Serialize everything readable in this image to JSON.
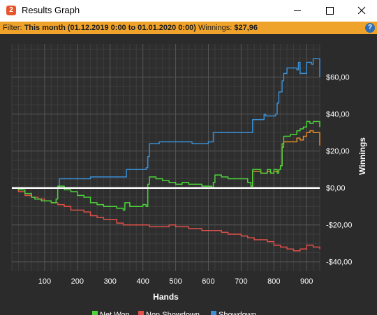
{
  "window": {
    "title": "Results Graph",
    "icon_label": "2",
    "controls": [
      "minimize",
      "maximize",
      "close"
    ]
  },
  "filter": {
    "label": "Filter:",
    "value": "This month (01.12.2019 0:00 to 01.01.2020 0:00)",
    "winnings_label": "Winnings:",
    "winnings_value": "$27,96",
    "help_label": "?"
  },
  "colors": {
    "background": "#2b2b2b",
    "grid": "#555555",
    "net_won": "#4cd43a",
    "non_showdown": "#e0504a",
    "showdown": "#3a8fd4",
    "extra_series": "#e08a2a",
    "zero_line": "#ffffff"
  },
  "chart_data": {
    "type": "line",
    "xlabel": "Hands",
    "ylabel": "Winnings",
    "xlim": [
      0,
      940
    ],
    "ylim": [
      -45,
      78
    ],
    "x_ticks": [
      100,
      200,
      300,
      400,
      500,
      600,
      700,
      800,
      900
    ],
    "y_ticks": [
      {
        "value": 60,
        "label": "$60,00"
      },
      {
        "value": 40,
        "label": "$40,00"
      },
      {
        "value": 20,
        "label": "$20,00"
      },
      {
        "value": 0,
        "label": "$0,00"
      },
      {
        "value": -20,
        "label": "-$20,00"
      },
      {
        "value": -40,
        "label": "-$40,00"
      }
    ],
    "grid": true,
    "legend_position": "bottom",
    "series": [
      {
        "name": "Showdown",
        "color_key": "showdown",
        "points": [
          [
            0,
            0
          ],
          [
            60,
            0
          ],
          [
            80,
            0
          ],
          [
            140,
            0
          ],
          [
            145,
            5
          ],
          [
            230,
            5
          ],
          [
            240,
            6
          ],
          [
            345,
            6
          ],
          [
            350,
            10
          ],
          [
            400,
            10
          ],
          [
            410,
            11
          ],
          [
            415,
            17
          ],
          [
            420,
            24
          ],
          [
            450,
            25
          ],
          [
            540,
            25
          ],
          [
            550,
            24
          ],
          [
            600,
            25
          ],
          [
            615,
            30
          ],
          [
            730,
            30
          ],
          [
            735,
            37
          ],
          [
            770,
            40
          ],
          [
            775,
            39
          ],
          [
            805,
            40
          ],
          [
            810,
            46
          ],
          [
            815,
            52
          ],
          [
            825,
            58
          ],
          [
            830,
            62
          ],
          [
            840,
            65
          ],
          [
            860,
            65
          ],
          [
            870,
            64
          ],
          [
            875,
            68
          ],
          [
            880,
            62
          ],
          [
            895,
            62
          ],
          [
            900,
            68
          ],
          [
            915,
            67
          ],
          [
            920,
            70
          ],
          [
            935,
            70
          ],
          [
            940,
            60
          ]
        ]
      },
      {
        "name": "Net Won",
        "color_key": "net_won",
        "points": [
          [
            0,
            0
          ],
          [
            20,
            -1
          ],
          [
            40,
            -3
          ],
          [
            60,
            -5
          ],
          [
            70,
            -6
          ],
          [
            90,
            -7
          ],
          [
            120,
            -8
          ],
          [
            135,
            -6
          ],
          [
            140,
            1
          ],
          [
            160,
            -1
          ],
          [
            180,
            -2
          ],
          [
            200,
            -4
          ],
          [
            220,
            -5
          ],
          [
            240,
            -8
          ],
          [
            260,
            -9
          ],
          [
            280,
            -10
          ],
          [
            300,
            -10
          ],
          [
            320,
            -11
          ],
          [
            340,
            -12
          ],
          [
            345,
            -8
          ],
          [
            360,
            -10
          ],
          [
            380,
            -10
          ],
          [
            400,
            -9
          ],
          [
            410,
            -10
          ],
          [
            415,
            2
          ],
          [
            420,
            6
          ],
          [
            440,
            5
          ],
          [
            460,
            4
          ],
          [
            480,
            3
          ],
          [
            500,
            2
          ],
          [
            520,
            3
          ],
          [
            540,
            2
          ],
          [
            560,
            2
          ],
          [
            580,
            1
          ],
          [
            600,
            1
          ],
          [
            610,
            0
          ],
          [
            615,
            3
          ],
          [
            620,
            7
          ],
          [
            640,
            6
          ],
          [
            660,
            5
          ],
          [
            680,
            5
          ],
          [
            700,
            5
          ],
          [
            720,
            3
          ],
          [
            730,
            1
          ],
          [
            735,
            10
          ],
          [
            760,
            8
          ],
          [
            780,
            10
          ],
          [
            790,
            8
          ],
          [
            800,
            10
          ],
          [
            810,
            8
          ],
          [
            815,
            10
          ],
          [
            820,
            12
          ],
          [
            825,
            24
          ],
          [
            830,
            28
          ],
          [
            850,
            29
          ],
          [
            870,
            31
          ],
          [
            880,
            32
          ],
          [
            890,
            33
          ],
          [
            900,
            36
          ],
          [
            910,
            35
          ],
          [
            920,
            36
          ],
          [
            930,
            36
          ],
          [
            940,
            33
          ]
        ]
      },
      {
        "name": "Non Showdown",
        "color_key": "non_showdown",
        "points": [
          [
            0,
            0
          ],
          [
            20,
            -2
          ],
          [
            40,
            -4
          ],
          [
            60,
            -5
          ],
          [
            80,
            -6
          ],
          [
            100,
            -7
          ],
          [
            120,
            -8
          ],
          [
            140,
            -9
          ],
          [
            160,
            -10
          ],
          [
            180,
            -12
          ],
          [
            200,
            -12
          ],
          [
            220,
            -13
          ],
          [
            240,
            -15
          ],
          [
            260,
            -16
          ],
          [
            280,
            -17
          ],
          [
            300,
            -17
          ],
          [
            320,
            -19
          ],
          [
            340,
            -20
          ],
          [
            360,
            -20
          ],
          [
            380,
            -20
          ],
          [
            400,
            -20
          ],
          [
            420,
            -21
          ],
          [
            440,
            -21
          ],
          [
            460,
            -21
          ],
          [
            480,
            -20
          ],
          [
            500,
            -21
          ],
          [
            520,
            -21
          ],
          [
            540,
            -22
          ],
          [
            560,
            -22
          ],
          [
            580,
            -23
          ],
          [
            600,
            -23
          ],
          [
            620,
            -23
          ],
          [
            640,
            -24
          ],
          [
            660,
            -25
          ],
          [
            680,
            -25
          ],
          [
            700,
            -26
          ],
          [
            720,
            -27
          ],
          [
            740,
            -28
          ],
          [
            760,
            -28
          ],
          [
            780,
            -29
          ],
          [
            800,
            -31
          ],
          [
            820,
            -32
          ],
          [
            840,
            -33
          ],
          [
            860,
            -34
          ],
          [
            880,
            -33
          ],
          [
            900,
            -31
          ],
          [
            920,
            -32
          ],
          [
            940,
            -33
          ]
        ]
      },
      {
        "name": "",
        "color_key": "extra_series",
        "points": [
          [
            730,
            1
          ],
          [
            735,
            9
          ],
          [
            760,
            8
          ],
          [
            780,
            9
          ],
          [
            790,
            8
          ],
          [
            800,
            9
          ],
          [
            815,
            10
          ],
          [
            820,
            12
          ],
          [
            825,
            22
          ],
          [
            830,
            25
          ],
          [
            850,
            25
          ],
          [
            870,
            27
          ],
          [
            880,
            26
          ],
          [
            890,
            28
          ],
          [
            900,
            30
          ],
          [
            910,
            31
          ],
          [
            920,
            30
          ],
          [
            930,
            30
          ],
          [
            940,
            23
          ]
        ]
      }
    ],
    "legend": [
      "Net Won",
      "Non Showdown",
      "Showdown"
    ]
  }
}
